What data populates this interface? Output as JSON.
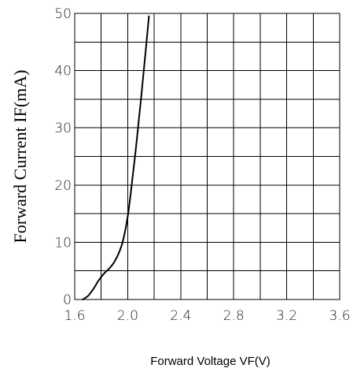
{
  "chart_data": {
    "type": "line",
    "title": "",
    "xlabel": "Forward Voltage VF(V)",
    "ylabel": "Forward Current IF(mA)",
    "xlim": [
      1.6,
      3.6
    ],
    "ylim": [
      0,
      50
    ],
    "x_ticks": [
      1.6,
      2.0,
      2.4,
      2.8,
      3.2,
      3.6
    ],
    "x_tick_labels": [
      "1.6",
      "2.0",
      "2.4",
      "2.8",
      "3.2",
      "3.6"
    ],
    "y_ticks": [
      0,
      10,
      20,
      30,
      40,
      50
    ],
    "y_tick_labels": [
      "0",
      "10",
      "20",
      "30",
      "40",
      "50"
    ],
    "x_grid_step": 0.2,
    "y_grid_step": 5,
    "grid": true,
    "legend": "none",
    "series": [
      {
        "color": "#000000",
        "x": [
          1.66,
          1.7,
          1.74,
          1.78,
          1.82,
          1.86,
          1.9,
          1.94,
          1.97,
          2.0,
          2.02,
          2.04,
          2.06,
          2.08,
          2.1,
          2.12,
          2.14,
          2.16
        ],
        "y": [
          0.0,
          0.6,
          1.8,
          3.3,
          4.5,
          5.4,
          6.6,
          8.5,
          10.8,
          14.5,
          18.0,
          22.0,
          26.0,
          30.5,
          35.0,
          39.7,
          44.5,
          49.5
        ]
      }
    ]
  }
}
